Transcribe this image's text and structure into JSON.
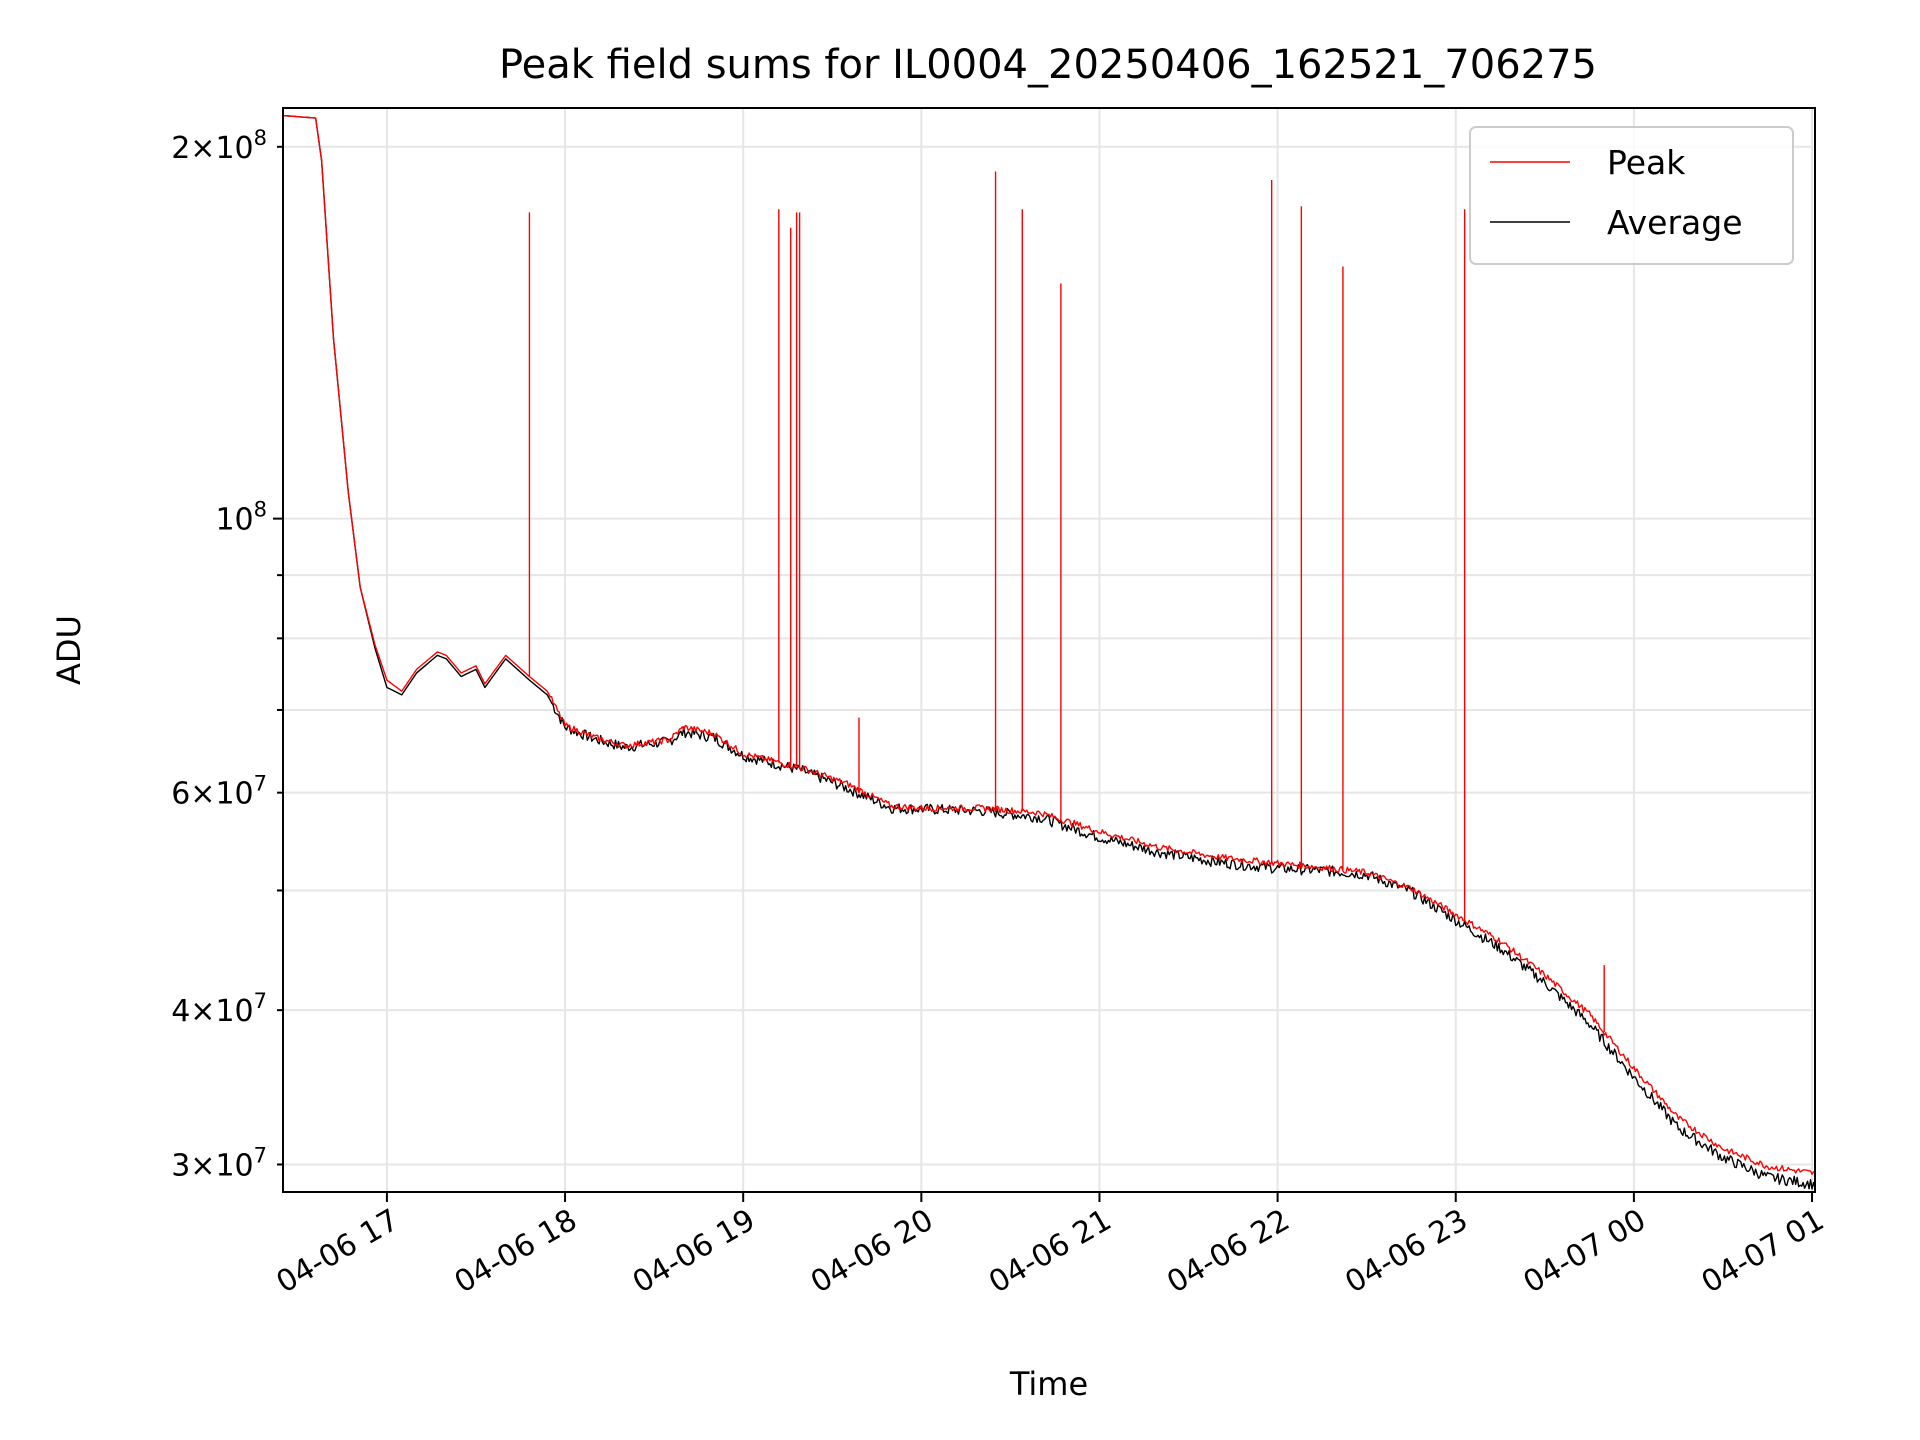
{
  "chart_data": {
    "type": "line",
    "title": "Peak field sums for IL0004_20250406_162521_706275",
    "xlabel": "Time",
    "ylabel": "ADU",
    "x_axis": {
      "type": "time",
      "range": [
        "2025-04-06 16:25",
        "2025-04-07 01:01"
      ],
      "ticks": [
        {
          "at": "2025-04-06 17:00",
          "label": "04-06 17"
        },
        {
          "at": "2025-04-06 18:00",
          "label": "04-06 18"
        },
        {
          "at": "2025-04-06 19:00",
          "label": "04-06 19"
        },
        {
          "at": "2025-04-06 20:00",
          "label": "04-06 20"
        },
        {
          "at": "2025-04-06 21:00",
          "label": "04-06 21"
        },
        {
          "at": "2025-04-06 22:00",
          "label": "04-06 22"
        },
        {
          "at": "2025-04-06 23:00",
          "label": "04-06 23"
        },
        {
          "at": "2025-04-07 00:00",
          "label": "04-07 00"
        },
        {
          "at": "2025-04-07 01:00",
          "label": "04-07 01"
        }
      ]
    },
    "y_axis": {
      "scale": "log",
      "range": [
        28500000,
        215000000
      ],
      "major_ticks": [
        {
          "value": 100000000,
          "mantissa": "",
          "exponent": "8"
        }
      ],
      "minor_ticks": [
        {
          "value": 30000000,
          "mantissa": "3",
          "exponent": "7"
        },
        {
          "value": 40000000,
          "mantissa": "4",
          "exponent": "7"
        },
        {
          "value": 60000000,
          "mantissa": "6",
          "exponent": "7"
        },
        {
          "value": 200000000,
          "mantissa": "2",
          "exponent": "8"
        }
      ],
      "unlabeled_minor_ticks": [
        50000000,
        70000000,
        80000000,
        90000000
      ]
    },
    "grid": true,
    "legend": {
      "placement": "top-right"
    },
    "series": [
      {
        "name": "Peak",
        "color": "#ff0000",
        "baseline": [
          [
            "2025-04-06 16:25",
            212000000
          ],
          [
            "2025-04-06 16:36",
            211000000
          ],
          [
            "2025-04-06 16:38",
            195000000
          ],
          [
            "2025-04-06 16:42",
            140000000
          ],
          [
            "2025-04-06 16:47",
            105000000
          ],
          [
            "2025-04-06 16:51",
            88000000
          ],
          [
            "2025-04-06 16:56",
            79000000
          ],
          [
            "2025-04-06 17:00",
            74000000
          ],
          [
            "2025-04-06 17:05",
            72500000
          ],
          [
            "2025-04-06 17:10",
            75500000
          ],
          [
            "2025-04-06 17:17",
            78000000
          ],
          [
            "2025-04-06 17:20",
            77500000
          ],
          [
            "2025-04-06 17:25",
            75000000
          ],
          [
            "2025-04-06 17:30",
            76000000
          ],
          [
            "2025-04-06 17:33",
            73500000
          ],
          [
            "2025-04-06 17:40",
            77500000
          ],
          [
            "2025-04-06 17:48",
            74500000
          ],
          [
            "2025-04-06 17:54",
            72500000
          ],
          [
            "2025-04-06 18:00",
            68000000
          ],
          [
            "2025-04-06 18:10",
            66500000
          ],
          [
            "2025-04-06 18:20",
            65500000
          ],
          [
            "2025-04-06 18:35",
            66200000
          ],
          [
            "2025-04-06 18:40",
            67800000
          ],
          [
            "2025-04-06 18:50",
            67000000
          ],
          [
            "2025-04-06 19:00",
            64500000
          ],
          [
            "2025-04-06 19:20",
            62800000
          ],
          [
            "2025-04-06 19:35",
            61000000
          ],
          [
            "2025-04-06 19:50",
            58500000
          ],
          [
            "2025-04-06 20:00",
            58300000
          ],
          [
            "2025-04-06 20:20",
            58300000
          ],
          [
            "2025-04-06 20:40",
            57800000
          ],
          [
            "2025-04-06 21:00",
            55800000
          ],
          [
            "2025-04-06 21:20",
            54200000
          ],
          [
            "2025-04-06 21:40",
            53200000
          ],
          [
            "2025-04-06 22:00",
            52600000
          ],
          [
            "2025-04-06 22:15",
            52200000
          ],
          [
            "2025-04-06 22:30",
            51700000
          ],
          [
            "2025-04-06 22:45",
            50200000
          ],
          [
            "2025-04-06 23:00",
            47800000
          ],
          [
            "2025-04-06 23:15",
            45500000
          ],
          [
            "2025-04-06 23:30",
            42700000
          ],
          [
            "2025-04-06 23:45",
            39700000
          ],
          [
            "2025-04-07 00:00",
            35900000
          ],
          [
            "2025-04-07 00:15",
            32700000
          ],
          [
            "2025-04-07 00:30",
            30900000
          ],
          [
            "2025-04-07 00:45",
            29900000
          ],
          [
            "2025-04-07 01:01",
            29500000
          ]
        ],
        "spikes": [
          [
            "2025-04-06 17:48",
            177000000
          ],
          [
            "2025-04-06 19:12",
            178000000
          ],
          [
            "2025-04-06 19:16",
            172000000
          ],
          [
            "2025-04-06 19:18",
            177000000
          ],
          [
            "2025-04-06 19:19",
            177000000
          ],
          [
            "2025-04-06 19:39",
            69000000
          ],
          [
            "2025-04-06 20:25",
            191000000
          ],
          [
            "2025-04-06 20:34",
            178000000
          ],
          [
            "2025-04-06 20:47",
            155000000
          ],
          [
            "2025-04-06 21:58",
            188000000
          ],
          [
            "2025-04-06 22:08",
            179000000
          ],
          [
            "2025-04-06 22:22",
            160000000
          ],
          [
            "2025-04-06 23:03",
            178000000
          ],
          [
            "2025-04-06 23:50",
            43500000
          ]
        ]
      },
      {
        "name": "Average",
        "color": "#000000",
        "baseline": [
          [
            "2025-04-06 16:25",
            212000000
          ],
          [
            "2025-04-06 16:36",
            211000000
          ],
          [
            "2025-04-06 16:38",
            195000000
          ],
          [
            "2025-04-06 16:42",
            140000000
          ],
          [
            "2025-04-06 16:47",
            105000000
          ],
          [
            "2025-04-06 16:51",
            88000000
          ],
          [
            "2025-04-06 16:56",
            78500000
          ],
          [
            "2025-04-06 17:00",
            73000000
          ],
          [
            "2025-04-06 17:05",
            72000000
          ],
          [
            "2025-04-06 17:10",
            75000000
          ],
          [
            "2025-04-06 17:17",
            77500000
          ],
          [
            "2025-04-06 17:20",
            77000000
          ],
          [
            "2025-04-06 17:25",
            74500000
          ],
          [
            "2025-04-06 17:30",
            75500000
          ],
          [
            "2025-04-06 17:33",
            73000000
          ],
          [
            "2025-04-06 17:40",
            77000000
          ],
          [
            "2025-04-06 17:48",
            74000000
          ],
          [
            "2025-04-06 17:54",
            72000000
          ],
          [
            "2025-04-06 18:00",
            67800000
          ],
          [
            "2025-04-06 18:10",
            66300000
          ],
          [
            "2025-04-06 18:20",
            65300000
          ],
          [
            "2025-04-06 18:35",
            66000000
          ],
          [
            "2025-04-06 18:40",
            67200000
          ],
          [
            "2025-04-06 18:50",
            66500000
          ],
          [
            "2025-04-06 19:00",
            64300000
          ],
          [
            "2025-04-06 19:20",
            62500000
          ],
          [
            "2025-04-06 19:35",
            60500000
          ],
          [
            "2025-04-06 19:50",
            58300000
          ],
          [
            "2025-04-06 20:00",
            58200000
          ],
          [
            "2025-04-06 20:20",
            58000000
          ],
          [
            "2025-04-06 20:40",
            57300000
          ],
          [
            "2025-04-06 21:00",
            55200000
          ],
          [
            "2025-04-06 21:20",
            53700000
          ],
          [
            "2025-04-06 21:40",
            52700000
          ],
          [
            "2025-04-06 22:00",
            52100000
          ],
          [
            "2025-04-06 22:15",
            51900000
          ],
          [
            "2025-04-06 22:30",
            51500000
          ],
          [
            "2025-04-06 22:45",
            49900000
          ],
          [
            "2025-04-06 23:00",
            47300000
          ],
          [
            "2025-04-06 23:15",
            44900000
          ],
          [
            "2025-04-06 23:30",
            42100000
          ],
          [
            "2025-04-06 23:45",
            39000000
          ],
          [
            "2025-04-07 00:00",
            35300000
          ],
          [
            "2025-04-07 00:15",
            32100000
          ],
          [
            "2025-04-07 00:30",
            30400000
          ],
          [
            "2025-04-07 00:45",
            29300000
          ],
          [
            "2025-04-07 01:01",
            28900000
          ]
        ]
      }
    ]
  }
}
